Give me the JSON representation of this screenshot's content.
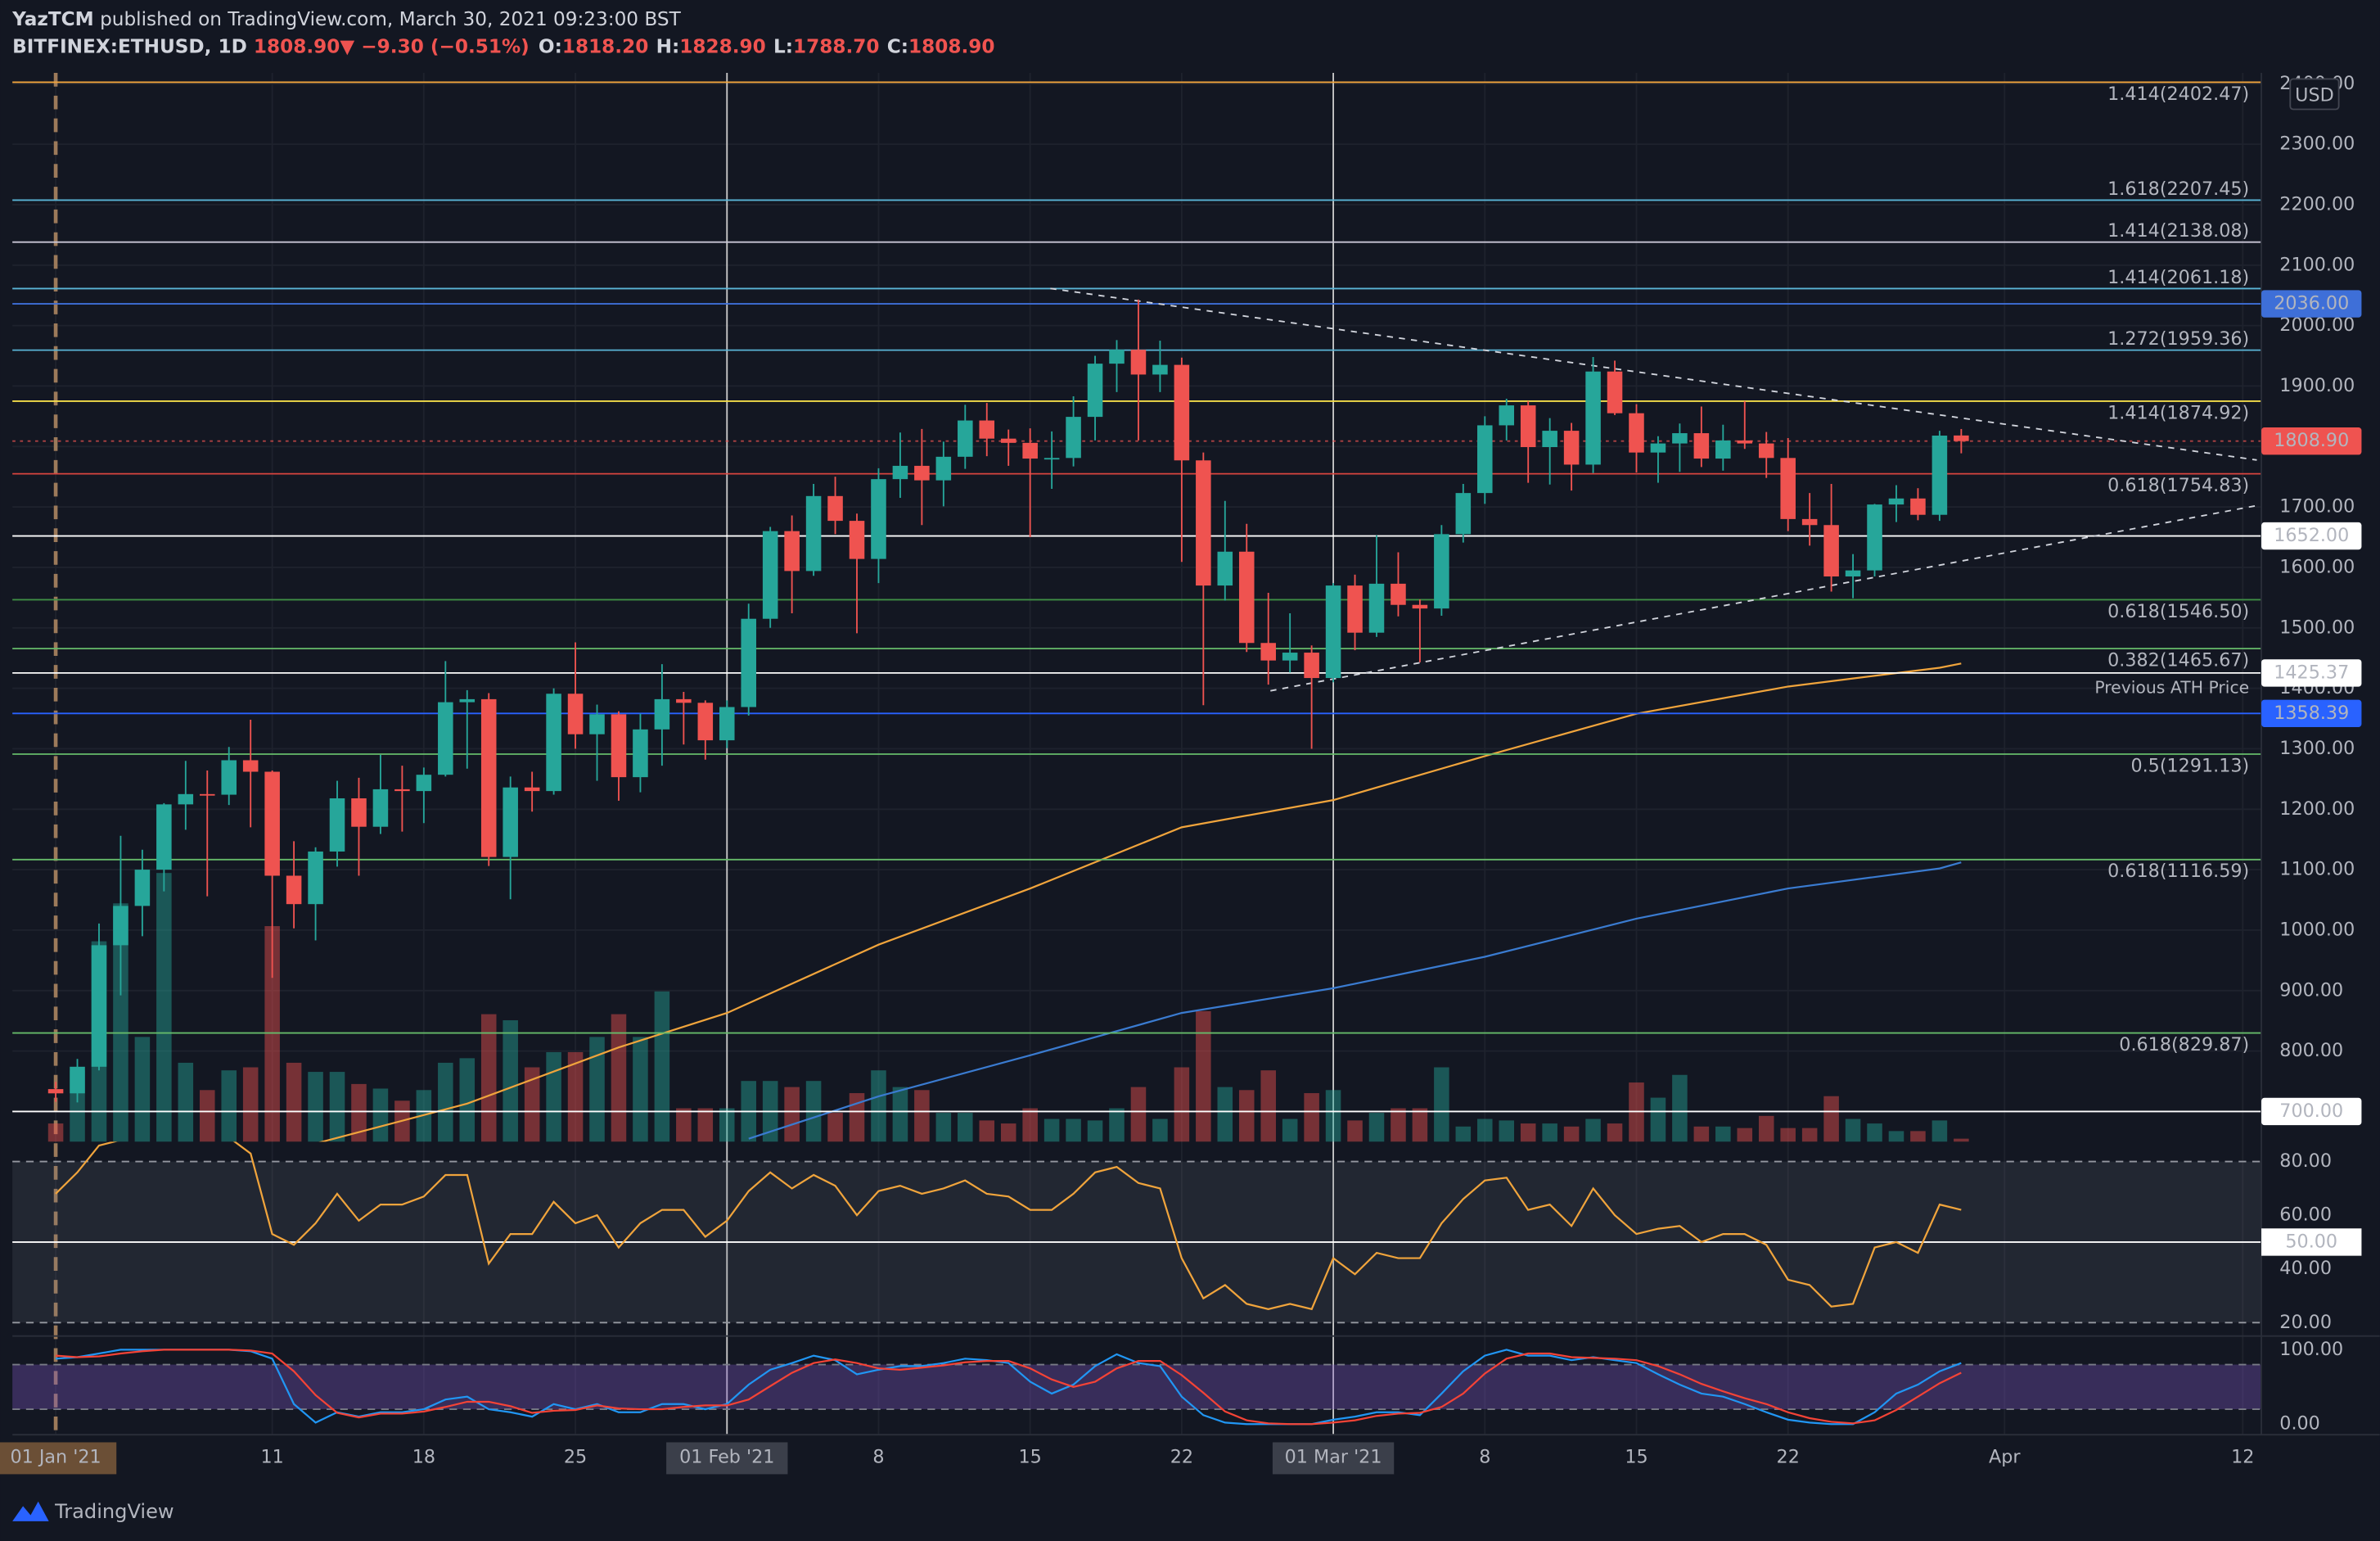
{
  "header": {
    "author": "YazTCM",
    "published": "published on TradingView.com, March 30, 2021 09:23:00 BST",
    "symbol": "BITFINEX:ETHUSD, 1D",
    "last": "1808.90",
    "change": "▼ −9.30 (−0.51%)",
    "ohlc": [
      {
        "key": "O:",
        "value": "1818.20"
      },
      {
        "key": "H:",
        "value": "1828.90"
      },
      {
        "key": "L:",
        "value": "1788.70"
      },
      {
        "key": "C:",
        "value": "1808.90"
      }
    ]
  },
  "chart_data": {
    "type": "candlestick",
    "currency": "USD",
    "up_color": "#26a69a",
    "down_color": "#ef5350",
    "grid": true,
    "x": [
      "2021-01-01",
      "2021-01-02",
      "2021-01-03",
      "2021-01-04",
      "2021-01-05",
      "2021-01-06",
      "2021-01-07",
      "2021-01-08",
      "2021-01-09",
      "2021-01-10",
      "2021-01-11",
      "2021-01-12",
      "2021-01-13",
      "2021-01-14",
      "2021-01-15",
      "2021-01-16",
      "2021-01-17",
      "2021-01-18",
      "2021-01-19",
      "2021-01-20",
      "2021-01-21",
      "2021-01-22",
      "2021-01-23",
      "2021-01-24",
      "2021-01-25",
      "2021-01-26",
      "2021-01-27",
      "2021-01-28",
      "2021-01-29",
      "2021-01-30",
      "2021-01-31",
      "2021-02-01",
      "2021-02-02",
      "2021-02-03",
      "2021-02-04",
      "2021-02-05",
      "2021-02-06",
      "2021-02-07",
      "2021-02-08",
      "2021-02-09",
      "2021-02-10",
      "2021-02-11",
      "2021-02-12",
      "2021-02-13",
      "2021-02-14",
      "2021-02-15",
      "2021-02-16",
      "2021-02-17",
      "2021-02-18",
      "2021-02-19",
      "2021-02-20",
      "2021-02-21",
      "2021-02-22",
      "2021-02-23",
      "2021-02-24",
      "2021-02-25",
      "2021-02-26",
      "2021-02-27",
      "2021-02-28",
      "2021-03-01",
      "2021-03-02",
      "2021-03-03",
      "2021-03-04",
      "2021-03-05",
      "2021-03-06",
      "2021-03-07",
      "2021-03-08",
      "2021-03-09",
      "2021-03-10",
      "2021-03-11",
      "2021-03-12",
      "2021-03-13",
      "2021-03-14",
      "2021-03-15",
      "2021-03-16",
      "2021-03-17",
      "2021-03-18",
      "2021-03-19",
      "2021-03-20",
      "2021-03-21",
      "2021-03-22",
      "2021-03-23",
      "2021-03-24",
      "2021-03-25",
      "2021-03-26",
      "2021-03-27",
      "2021-03-28",
      "2021-03-29",
      "2021-03-30"
    ],
    "open": [
      737,
      730,
      774,
      975,
      1040,
      1100,
      1208,
      1225,
      1224,
      1281,
      1262,
      1090,
      1043,
      1130,
      1218,
      1171,
      1233,
      1230,
      1257,
      1377,
      1382,
      1121,
      1236,
      1230,
      1391,
      1324,
      1357,
      1253,
      1332,
      1382,
      1376,
      1314,
      1369,
      1515,
      1660,
      1594,
      1718,
      1677,
      1614,
      1746,
      1768,
      1744,
      1783,
      1843,
      1813,
      1806,
      1780,
      1781,
      1849,
      1937,
      1960,
      1919,
      1935,
      1777,
      1570,
      1626,
      1475,
      1446,
      1459,
      1417,
      1570,
      1492,
      1573,
      1538,
      1532,
      1655,
      1723,
      1835,
      1868,
      1799,
      1826,
      1770,
      1924,
      1855,
      1790,
      1805,
      1822,
      1780,
      1810,
      1805,
      1781,
      1680,
      1670,
      1585,
      1595,
      1704,
      1714,
      1687,
      1818.2
    ],
    "high": [
      749,
      787,
      1011,
      1156,
      1133,
      1210,
      1280,
      1264,
      1303,
      1348,
      1264,
      1147,
      1137,
      1247,
      1252,
      1290,
      1272,
      1269,
      1445,
      1397,
      1392,
      1254,
      1262,
      1400,
      1476,
      1373,
      1362,
      1358,
      1440,
      1394,
      1380,
      1380,
      1540,
      1667,
      1686,
      1738,
      1750,
      1689,
      1764,
      1823,
      1829,
      1808,
      1869,
      1872,
      1828,
      1830,
      1825,
      1883,
      1950,
      1976,
      2043,
      1975,
      1947,
      1790,
      1710,
      1672,
      1558,
      1524,
      1471,
      1574,
      1588,
      1653,
      1625,
      1547,
      1670,
      1738,
      1850,
      1879,
      1875,
      1847,
      1839,
      1948,
      1942,
      1870,
      1817,
      1838,
      1866,
      1836,
      1875,
      1824,
      1814,
      1723,
      1738,
      1622,
      1705,
      1736,
      1731,
      1826,
      1828.9
    ],
    "low": [
      716,
      715,
      768,
      892,
      990,
      1064,
      1166,
      1056,
      1207,
      1170,
      921,
      1003,
      983,
      1105,
      1090,
      1159,
      1163,
      1177,
      1254,
      1267,
      1106,
      1051,
      1196,
      1224,
      1300,
      1247,
      1214,
      1228,
      1272,
      1307,
      1282,
      1301,
      1355,
      1500,
      1524,
      1586,
      1655,
      1491,
      1574,
      1715,
      1670,
      1701,
      1763,
      1784,
      1768,
      1650,
      1730,
      1767,
      1810,
      1890,
      1810,
      1890,
      1609,
      1372,
      1545,
      1460,
      1406,
      1426,
      1300,
      1410,
      1463,
      1485,
      1519,
      1443,
      1520,
      1641,
      1705,
      1810,
      1740,
      1737,
      1727,
      1756,
      1852,
      1757,
      1740,
      1758,
      1766,
      1760,
      1796,
      1748,
      1660,
      1636,
      1560,
      1549,
      1585,
      1675,
      1678,
      1677,
      1788.7
    ],
    "close": [
      730,
      774,
      975,
      1040,
      1100,
      1208,
      1225,
      1224,
      1281,
      1262,
      1090,
      1043,
      1130,
      1218,
      1171,
      1233,
      1230,
      1257,
      1377,
      1382,
      1121,
      1236,
      1230,
      1391,
      1324,
      1357,
      1253,
      1332,
      1382,
      1376,
      1314,
      1369,
      1515,
      1660,
      1594,
      1718,
      1677,
      1614,
      1746,
      1768,
      1744,
      1783,
      1843,
      1813,
      1806,
      1780,
      1781,
      1849,
      1937,
      1960,
      1919,
      1935,
      1777,
      1570,
      1626,
      1475,
      1446,
      1459,
      1417,
      1570,
      1492,
      1573,
      1538,
      1532,
      1655,
      1723,
      1835,
      1868,
      1799,
      1826,
      1770,
      1924,
      1855,
      1790,
      1805,
      1822,
      1780,
      1810,
      1805,
      1781,
      1680,
      1670,
      1585,
      1595,
      1704,
      1714,
      1687,
      1818,
      1808.9
    ],
    "volume": [
      12,
      47,
      132,
      157,
      69,
      177,
      52,
      34,
      47,
      49,
      142,
      52,
      46,
      46,
      38,
      35,
      27,
      34,
      52,
      55,
      84,
      80,
      49,
      59,
      59,
      69,
      84,
      69,
      99,
      22,
      22,
      22,
      40,
      40,
      36,
      40,
      19,
      32,
      47,
      36,
      34,
      19,
      19,
      14,
      12,
      22,
      15,
      15,
      14,
      22,
      36,
      15,
      49,
      86,
      36,
      34,
      47,
      15,
      32,
      34,
      14,
      19,
      22,
      22,
      49,
      10,
      15,
      14,
      12,
      12,
      10,
      15,
      12,
      39,
      29,
      44,
      10,
      10,
      9,
      17,
      9,
      9,
      30,
      15,
      12,
      7,
      7,
      14,
      2
    ],
    "volume_lim": [
      0,
      704
    ],
    "xlim": [
      "2020-12-30",
      "2021-04-13"
    ],
    "xticks": [
      {
        "value": "2021-01-01",
        "label": "01 Jan '21",
        "box": "#6b4f36",
        "line": "#9c7a5a",
        "dashed": true
      },
      {
        "value": "2021-01-11",
        "label": "11"
      },
      {
        "value": "2021-01-18",
        "label": "18"
      },
      {
        "value": "2021-01-25",
        "label": "25"
      },
      {
        "value": "2021-02-01",
        "label": "01 Feb '21",
        "box": "#3b3f4a",
        "line": "#c8c8c8"
      },
      {
        "value": "2021-02-08",
        "label": "8"
      },
      {
        "value": "2021-02-15",
        "label": "15"
      },
      {
        "value": "2021-02-22",
        "label": "22"
      },
      {
        "value": "2021-03-01",
        "label": "01 Mar '21",
        "box": "#3b3f4a",
        "line": "#c8c8c8"
      },
      {
        "value": "2021-03-08",
        "label": "8"
      },
      {
        "value": "2021-03-15",
        "label": "15"
      },
      {
        "value": "2021-03-22",
        "label": "22"
      },
      {
        "value": "2021-04-01",
        "label": "Apr"
      },
      {
        "value": "2021-04-12",
        "label": "12"
      }
    ],
    "ylim": [
      650,
      2418
    ],
    "yticks": [
      {
        "value": 700,
        "label": "700.00"
      },
      {
        "value": 800,
        "label": "800.00"
      },
      {
        "value": 900,
        "label": "900.00"
      },
      {
        "value": 1000,
        "label": "1000.00"
      },
      {
        "value": 1100,
        "label": "1100.00"
      },
      {
        "value": 1200,
        "label": "1200.00"
      },
      {
        "value": 1300,
        "label": "1300.00"
      },
      {
        "value": 1400,
        "label": "1400.00"
      },
      {
        "value": 1500,
        "label": "1500.00"
      },
      {
        "value": 1600,
        "label": "1600.00"
      },
      {
        "value": 1700,
        "label": "1700.00"
      },
      {
        "value": 1800,
        "label": "1800.00"
      },
      {
        "value": 1900,
        "label": "1900.00"
      },
      {
        "value": 2000,
        "label": "2000.00"
      },
      {
        "value": 2100,
        "label": "2100.00"
      },
      {
        "value": 2200,
        "label": "2200.00"
      },
      {
        "value": 2300,
        "label": "2300.00"
      },
      {
        "value": 2400,
        "label": "2400.00"
      }
    ],
    "levels": [
      {
        "value": 2402.47,
        "label": "1.414(2402.47)",
        "color": "#f0a43c",
        "label_position": "below"
      },
      {
        "value": 2207.45,
        "label": "1.618(2207.45)",
        "color": "#5ab4d6",
        "label_position": "above"
      },
      {
        "value": 2138.08,
        "label": "1.414(2138.08)",
        "color": "#c9c6d6",
        "label_position": "above"
      },
      {
        "value": 2061.18,
        "label": "1.414(2061.18)",
        "color": "#5ab4d6",
        "label_position": "above"
      },
      {
        "value": 2036,
        "label": "2036.00",
        "color": "#3e6fd8",
        "box": true,
        "box_text": "#ffffff"
      },
      {
        "value": 1959.36,
        "label": "1.272(1959.36)",
        "color": "#5ab4d6",
        "label_position": "above"
      },
      {
        "value": 1874.92,
        "label": "1.414(1874.92)",
        "color": "#f2dc4a",
        "label_position": "below"
      },
      {
        "value": 1808.9,
        "label": "1808.90",
        "color": "#ef5350",
        "box": true,
        "box_text": "#ffffff",
        "dashed": true
      },
      {
        "value": 1754.83,
        "label": "0.618(1754.83)",
        "color": "#d9443f",
        "label_position": "below"
      },
      {
        "value": 1652,
        "label": "1652.00",
        "color": "#ffffff",
        "box": true,
        "box_text": "#131722"
      },
      {
        "value": 1546.5,
        "label": "0.618(1546.50)",
        "color": "#3f8f45",
        "label_position": "below"
      },
      {
        "value": 1465.67,
        "label": "0.382(1465.67)",
        "color": "#66bb6a",
        "label_position": "below"
      },
      {
        "value": 1425.37,
        "label": "1425.37",
        "color": "#ffffff",
        "box": true,
        "box_text": "#131722",
        "note": "Previous ATH Price"
      },
      {
        "value": 1358.39,
        "label": "1358.39",
        "color": "#2962ff",
        "box": true,
        "box_text": "#ffffff"
      },
      {
        "value": 1291.13,
        "label": "0.5(1291.13)",
        "color": "#66bb6a",
        "label_position": "below"
      },
      {
        "value": 1116.59,
        "label": "0.618(1116.59)",
        "color": "#66bb6a",
        "label_position": "below"
      },
      {
        "value": 829.87,
        "label": "0.618(829.87)",
        "color": "#66bb6a",
        "label_position": "below"
      },
      {
        "value": 700,
        "label": "700.00",
        "color": "#ffffff",
        "box": true,
        "box_text": "#131722"
      }
    ],
    "moving_averages": [
      {
        "color": "#f0a43c",
        "x": [
          "2021-01-13",
          "2021-01-20",
          "2021-01-27",
          "2021-02-01",
          "2021-02-08",
          "2021-02-15",
          "2021-02-22",
          "2021-03-01",
          "2021-03-08",
          "2021-03-15",
          "2021-03-22",
          "2021-03-29",
          "2021-03-30"
        ],
        "values": [
          647,
          713,
          806,
          863,
          976,
          1069,
          1170,
          1215,
          1288,
          1358,
          1403,
          1434,
          1441
        ]
      },
      {
        "color": "#3a7bd0",
        "x": [
          "2021-02-02",
          "2021-02-08",
          "2021-02-15",
          "2021-02-22",
          "2021-03-01",
          "2021-03-08",
          "2021-03-15",
          "2021-03-22",
          "2021-03-29",
          "2021-03-30"
        ],
        "values": [
          655,
          725,
          793,
          863,
          904,
          956,
          1019,
          1069,
          1102,
          1112
        ]
      }
    ],
    "rsi": {
      "color": "#f0a43c",
      "ylim": [
        15,
        87.4
      ],
      "yticks": [
        {
          "value": 20,
          "label": "20.00"
        },
        {
          "value": 40,
          "label": "40.00"
        },
        {
          "value": 60,
          "label": "60.00"
        },
        {
          "value": 80,
          "label": "80.00"
        }
      ],
      "band": [
        20,
        80
      ],
      "midline": {
        "value": 50,
        "label": "50.00"
      },
      "values": [
        68,
        76,
        86,
        88,
        89,
        91,
        91,
        88,
        89,
        83,
        53,
        49,
        57,
        68,
        58,
        64,
        64,
        67,
        75,
        75,
        42,
        53,
        53,
        65,
        57,
        60,
        48,
        57,
        62,
        62,
        52,
        58,
        69,
        76,
        70,
        75,
        71,
        60,
        69,
        71,
        68,
        70,
        73,
        68,
        67,
        62,
        62,
        68,
        76,
        78,
        72,
        70,
        44,
        29,
        34,
        27,
        25,
        27,
        25,
        44,
        38,
        46,
        44,
        44,
        57,
        66,
        73,
        74,
        62,
        64,
        56,
        70,
        60,
        53,
        55,
        56,
        50,
        53,
        53,
        49,
        36,
        34,
        26,
        27,
        48,
        50,
        46,
        64,
        62
      ]
    },
    "stoch_rsi": {
      "ylim": [
        -14.3,
        118.4
      ],
      "yticks": [
        {
          "value": 0,
          "label": "0.00"
        },
        {
          "value": 100,
          "label": "100.00"
        }
      ],
      "band": [
        20,
        80
      ],
      "k": {
        "color": "#2196f3",
        "values": [
          88,
          90,
          95,
          100,
          100,
          100,
          100,
          100,
          100,
          98,
          88,
          27,
          2,
          16,
          10,
          16,
          16,
          20,
          33,
          37,
          20,
          16,
          10,
          27,
          20,
          27,
          16,
          16,
          27,
          27,
          20,
          27,
          53,
          73,
          82,
          92,
          86,
          67,
          73,
          78,
          78,
          82,
          88,
          86,
          82,
          57,
          41,
          53,
          78,
          94,
          82,
          78,
          37,
          12,
          2,
          0,
          0,
          0,
          0,
          6,
          10,
          16,
          16,
          12,
          41,
          71,
          92,
          100,
          92,
          92,
          86,
          90,
          86,
          82,
          67,
          53,
          41,
          37,
          27,
          16,
          6,
          2,
          0,
          0,
          16,
          41,
          53,
          71,
          82
        ]
      },
      "d": {
        "color": "#f44336",
        "values": [
          92,
          90,
          91,
          95,
          98,
          100,
          100,
          100,
          100,
          99,
          95,
          71,
          39,
          15,
          9,
          14,
          14,
          17,
          23,
          30,
          30,
          24,
          15,
          18,
          19,
          25,
          21,
          20,
          20,
          23,
          25,
          25,
          33,
          51,
          69,
          82,
          87,
          82,
          75,
          73,
          76,
          79,
          83,
          85,
          85,
          75,
          60,
          50,
          57,
          75,
          85,
          85,
          66,
          42,
          17,
          5,
          1,
          0,
          0,
          2,
          5,
          11,
          14,
          15,
          23,
          41,
          68,
          88,
          95,
          95,
          90,
          89,
          88,
          86,
          78,
          67,
          54,
          44,
          35,
          27,
          16,
          8,
          3,
          1,
          5,
          19,
          37,
          55,
          69
        ]
      }
    }
  },
  "footer": {
    "logo": "TradingView"
  }
}
